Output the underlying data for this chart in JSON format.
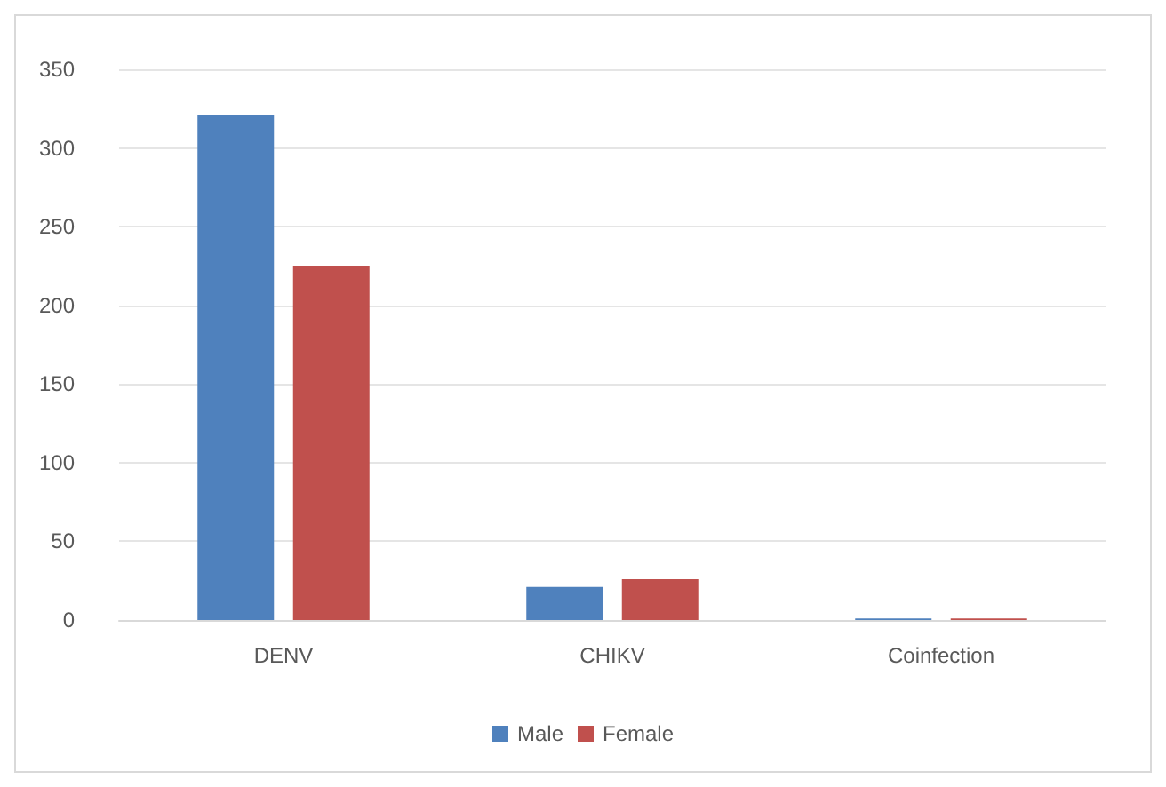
{
  "chart_data": {
    "type": "bar",
    "categories": [
      "DENV",
      "CHIKV",
      "Coinfection"
    ],
    "series": [
      {
        "name": "Male",
        "color": "#4f81bd",
        "values": [
          321,
          21,
          1
        ]
      },
      {
        "name": "Female",
        "color": "#c0504d",
        "values": [
          225,
          26,
          1
        ]
      }
    ],
    "ylim": [
      0,
      350
    ],
    "yticks": [
      0,
      50,
      100,
      150,
      200,
      250,
      300,
      350
    ],
    "grid": "y",
    "legend": "bottom"
  }
}
